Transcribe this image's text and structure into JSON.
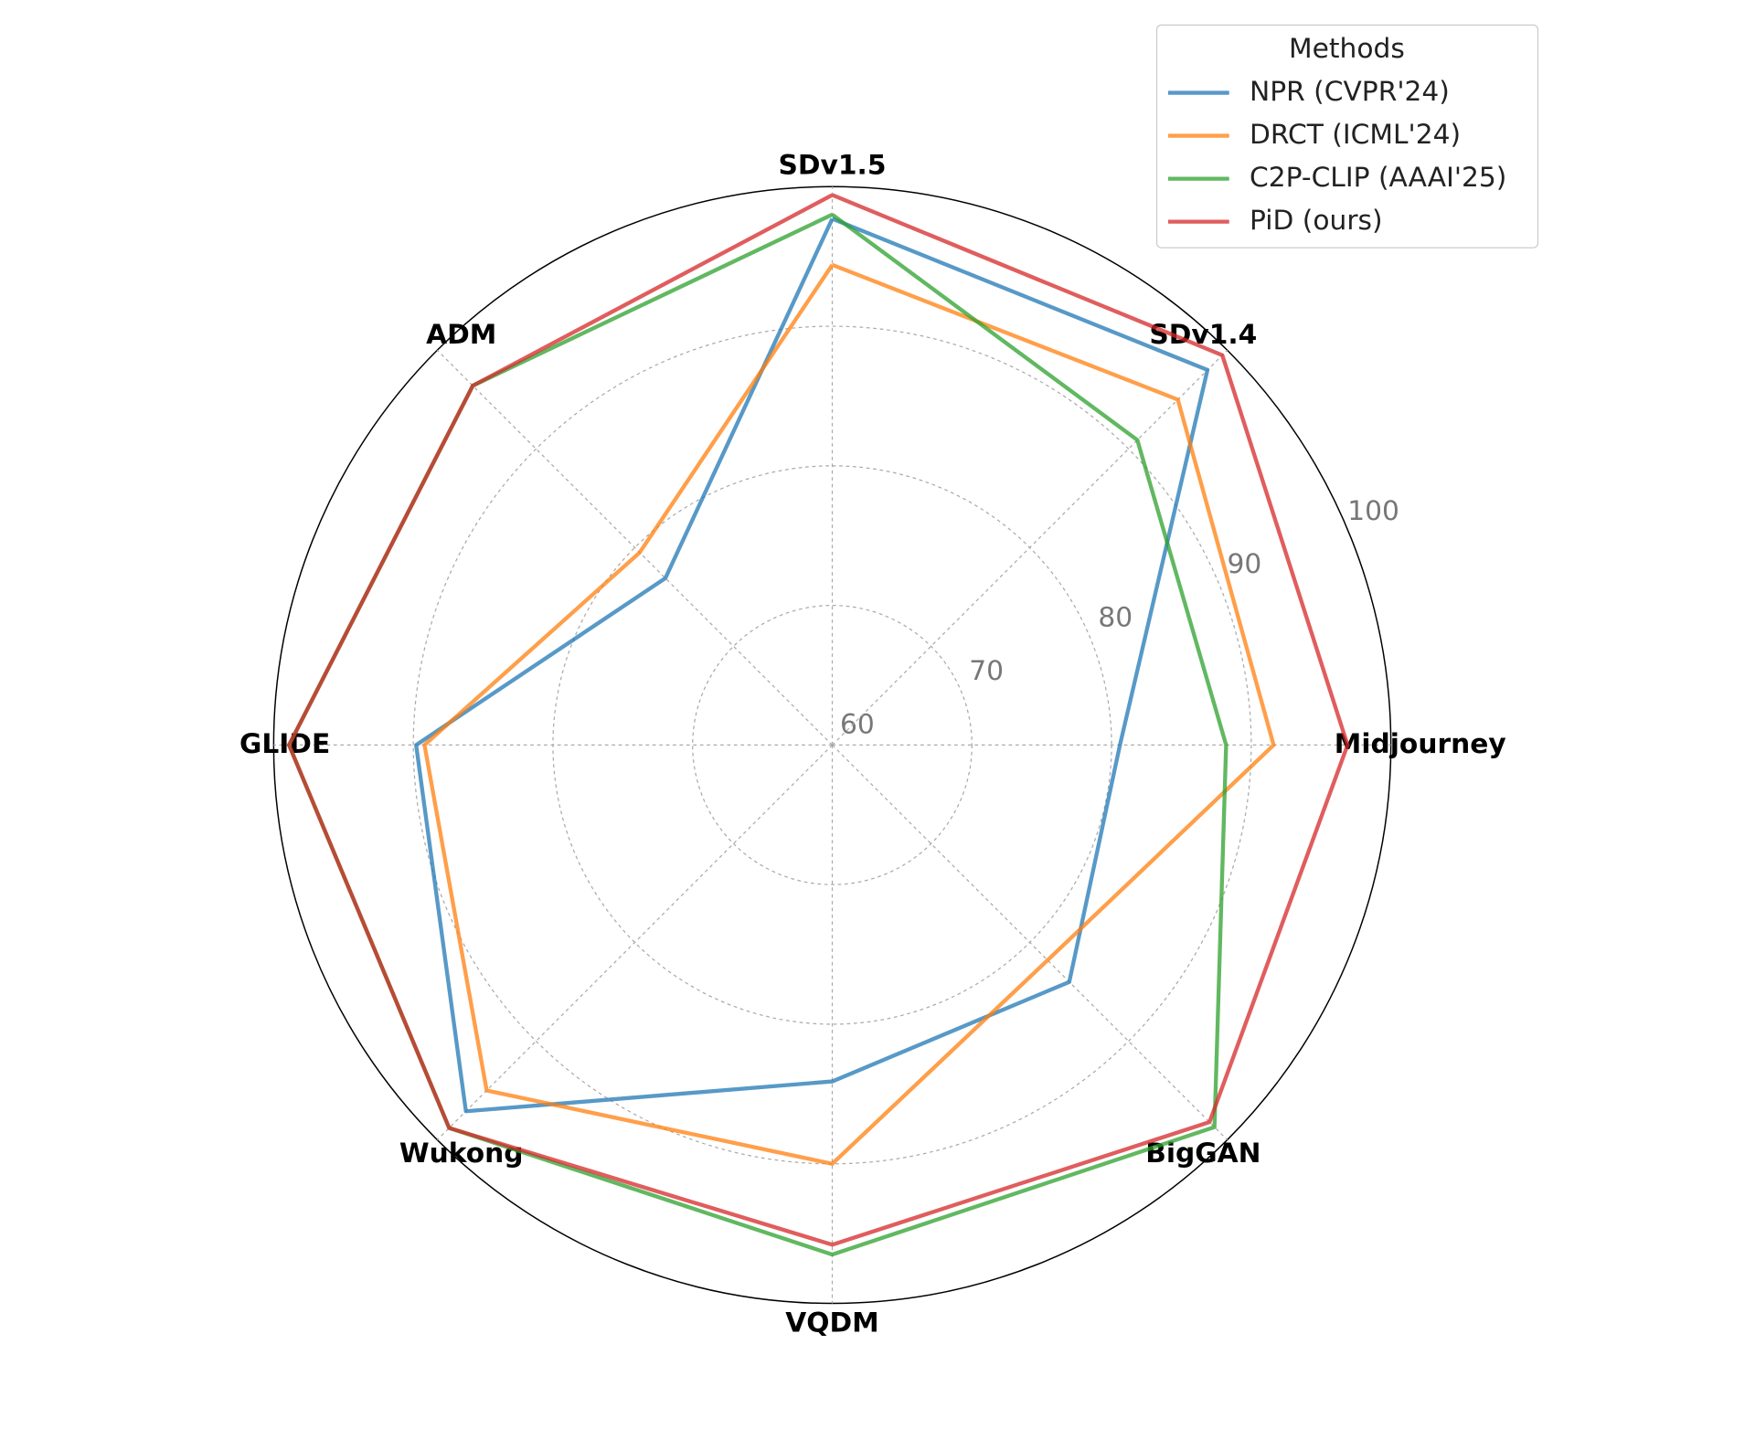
{
  "chart_data": {
    "type": "radar",
    "categories": [
      "SDv1.5",
      "SDv1.4",
      "Midjourney",
      "BigGAN",
      "VQDM",
      "Wukong",
      "GLIDE",
      "ADM"
    ],
    "series": [
      {
        "name": "NPR (CVPR'24)",
        "color": "#1f77b4",
        "values": [
          97.7,
          98.0,
          80.6,
          84.0,
          84.1,
          97.1,
          89.8,
          76.9
        ]
      },
      {
        "name": "DRCT (ICML'24)",
        "color": "#ff7f0e",
        "values": [
          94.4,
          95.0,
          91.6,
          81.8,
          90.0,
          95.0,
          89.2,
          79.5
        ]
      },
      {
        "name": "C2P-CLIP (AAAI'25)",
        "color": "#2ca02c",
        "values": [
          98.0,
          90.9,
          88.2,
          98.7,
          96.5,
          98.8,
          98.9,
          96.4
        ]
      },
      {
        "name": "PiD (ours)",
        "color": "#d62728",
        "values": [
          99.4,
          99.5,
          96.9,
          98.2,
          95.8,
          98.8,
          98.9,
          96.4
        ]
      }
    ],
    "rlim": [
      60,
      100
    ],
    "rticks": [
      60,
      70,
      80,
      90,
      100
    ],
    "legend_title": "Methods",
    "legend_position": "upper right",
    "grid": true
  }
}
